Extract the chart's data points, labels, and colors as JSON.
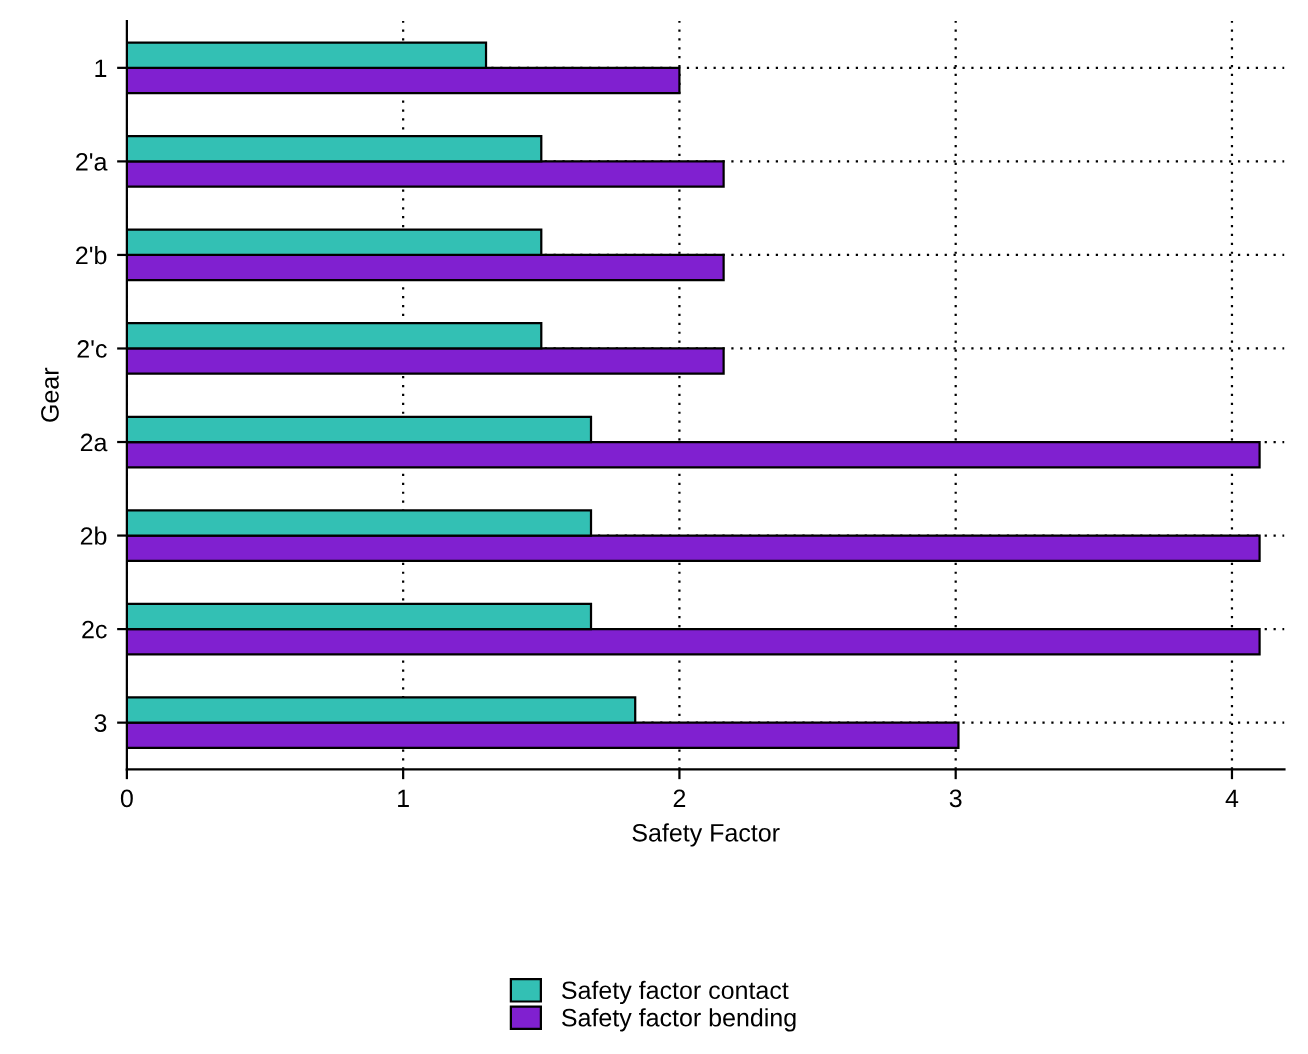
{
  "chart_data": {
    "type": "bar",
    "orientation": "horizontal",
    "xlabel": "Safety Factor",
    "ylabel": "Gear",
    "categories": [
      "1",
      "2'a",
      "2'b",
      "2'c",
      "2a",
      "2b",
      "2c",
      "3"
    ],
    "series": [
      {
        "name": "Safety factor bending",
        "color": "#8020d0",
        "values": [
          2.0,
          2.16,
          2.16,
          2.16,
          4.1,
          4.1,
          4.1,
          3.01
        ]
      },
      {
        "name": "Safety factor contact",
        "color": "#33c0b4",
        "values": [
          1.3,
          1.5,
          1.5,
          1.5,
          1.68,
          1.68,
          1.68,
          1.84
        ]
      }
    ],
    "xlim": [
      0,
      4.19
    ],
    "xticks": [
      0,
      1,
      2,
      3,
      4
    ],
    "grid": true,
    "legend": "bottom"
  }
}
